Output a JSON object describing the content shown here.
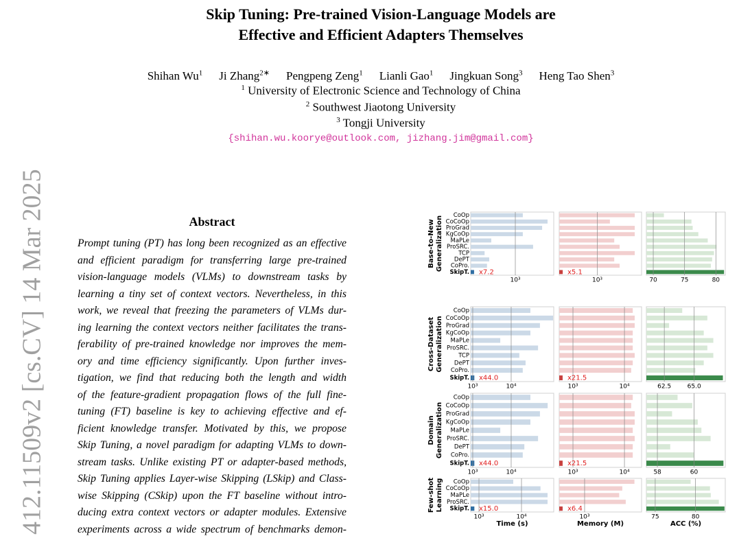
{
  "arxiv_stamp": "412.11509v2  [cs.CV]  14 Mar 2025",
  "header": {
    "title": [
      "Skip Tuning: Pre-trained Vision-Language Models are",
      "Effective and Efficient Adapters Themselves"
    ],
    "authors": [
      {
        "name": "Shihan Wu",
        "aff": "1"
      },
      {
        "name": "Ji Zhang",
        "aff": "2∗"
      },
      {
        "name": "Pengpeng Zeng",
        "aff": "1"
      },
      {
        "name": "Lianli Gao",
        "aff": "1"
      },
      {
        "name": "Jingkuan Song",
        "aff": "3"
      },
      {
        "name": "Heng Tao Shen",
        "aff": "3"
      }
    ],
    "affiliations": [
      {
        "num": "1",
        "name": "University of Electronic Science and Technology of China"
      },
      {
        "num": "2",
        "name": "Southwest Jiaotong University"
      },
      {
        "num": "3",
        "name": "Tongji University"
      }
    ],
    "emails": "{shihan.wu.koorye@outlook.com, jizhang.jim@gmail.com}"
  },
  "abstract": {
    "heading": "Abstract",
    "lines": [
      "Prompt tuning (PT) has long been recognized as an effective",
      "and efficient paradigm for transferring large pre-trained",
      "vision-language models (VLMs) to downstream tasks by",
      "learning a tiny set of context vectors. Nevertheless, in this",
      "work, we reveal that freezing the parameters of VLMs dur-",
      "ing learning the context vectors neither facilitates the trans-",
      "ferability of pre-trained knowledge nor improves the mem-",
      "ory and time efficiency significantly. Upon further inves-",
      "tigation, we find that reducing both the length and width",
      "of the feature-gradient propagation flows of the full fine-",
      "tuning (FT) baseline is key to achieving effective and ef-",
      "ficient knowledge transfer. Motivated by this, we propose",
      "Skip Tuning, a novel paradigm for adapting VLMs to down-",
      "stream tasks. Unlike existing PT or adapter-based methods,",
      "Skip Tuning applies Layer-wise Skipping (LSkip) and Class-",
      "wise Skipping (CSkip) upon the FT baseline without intro-",
      "ducing extra context vectors or adapter modules. Extensive",
      "experiments across a wide spectrum of benchmarks demon-"
    ]
  },
  "figure": {
    "columns": [
      {
        "title": "Time (s)",
        "color": "#cbd9e7",
        "highlight": "#2f6ea3",
        "log": true
      },
      {
        "title": "Memory (M)",
        "color": "#f2cfcf",
        "highlight": "#c8413f",
        "log": true
      },
      {
        "title": "ACC (%)",
        "color": "#d7e8d6",
        "highlight": "#3b8a4b",
        "log": false
      }
    ],
    "rows": [
      {
        "label": [
          "Base-to-New",
          "Generalization"
        ],
        "methods": [
          "CoOp",
          "CoCoOp",
          "ProGrad",
          "KgCoOp",
          "MaPLe",
          "ProSRC.",
          "TCP",
          "DePT",
          "CoPro.",
          "SkipT."
        ],
        "panels": [
          {
            "values": [
              1310,
              3200,
              2630,
              1310,
              420,
              1900,
              330,
              390,
              360,
              226
            ],
            "xlim": [
              200,
              4000
            ],
            "xticks": [
              {
                "value": 1000,
                "label": "10³"
              }
            ],
            "annotation": "x7.2"
          },
          {
            "values": [
              3900,
              1580,
              3900,
              3900,
              1850,
              2250,
              3900,
              1850,
              2250,
              284
            ],
            "xlim": [
              250,
              5000
            ],
            "xticks": [
              {
                "value": 1000,
                "label": "10³"
              }
            ],
            "annotation": "x5.1"
          },
          {
            "values": [
              71.7,
              76.1,
              76.3,
              77.2,
              78.7,
              80.1,
              79.7,
              79.4,
              79.2,
              81.3
            ],
            "xlim": [
              68.9,
              81.5
            ],
            "xticks": [
              70,
              75,
              80
            ]
          }
        ]
      },
      {
        "label": [
          "Cross-Dataset",
          "Generalization"
        ],
        "methods": [
          "CoOp",
          "CoCoOp",
          "ProGrad",
          "KgCoOp",
          "MaPLe",
          "ProSRC.",
          "TCP",
          "DePT",
          "CoPro.",
          "SkipT."
        ],
        "panels": [
          {
            "values": [
              31600,
              123000,
              56000,
              31600,
              5200,
              50000,
              16300,
              23700,
              20000,
              1100
            ],
            "xlim": [
              885,
              128000
            ],
            "xticks": [
              {
                "value": 1000,
                "label": "10³"
              },
              {
                "value": 10000,
                "label": "10⁴"
              }
            ],
            "annotation": "x44.0"
          },
          {
            "values": [
              14500,
              15800,
              15800,
              14500,
              14500,
              14500,
              15800,
              14500,
              13500,
              630
            ],
            "xlim": [
              541,
              21500
            ],
            "xticks": [
              {
                "value": 1000,
                "label": "10³"
              },
              {
                "value": 10000,
                "label": "10⁴"
              }
            ],
            "annotation": "x21.5"
          },
          {
            "values": [
              64.0,
              66.1,
              62.9,
              65.8,
              66.6,
              66.1,
              66.6,
              65.8,
              65.1,
              67.4
            ],
            "xlim": [
              61.0,
              67.6
            ],
            "xticks": [
              62.5,
              {
                "value": 65,
                "label": "65.0"
              }
            ]
          }
        ]
      },
      {
        "label": [
          "Domain",
          "Generalization"
        ],
        "methods": [
          "CoOp",
          "CoCoOp",
          "ProGrad",
          "KgCoOp",
          "MaPLe",
          "ProSRC.",
          "DePT",
          "CoPro.",
          "SkipT."
        ],
        "panels": [
          {
            "values": [
              31600,
              89000,
              56000,
              31600,
              5200,
              50000,
              22000,
              20000,
              1100
            ],
            "xlim": [
              885,
              128000
            ],
            "xticks": [
              {
                "value": 1000,
                "label": "10³"
              },
              {
                "value": 10000,
                "label": "10⁴"
              }
            ],
            "annotation": "x44.0"
          },
          {
            "values": [
              14500,
              13500,
              15800,
              15800,
              14500,
              15800,
              14500,
              14500,
              630
            ],
            "xlim": [
              541,
              21500
            ],
            "xticks": [
              {
                "value": 1000,
                "label": "10³"
              },
              {
                "value": 10000,
                "label": "10⁴"
              }
            ],
            "annotation": "x21.5"
          },
          {
            "values": [
              59.1,
              59.9,
              58.8,
              60.2,
              60.4,
              60.9,
              58.7,
              60.0,
              61.6
            ],
            "xlim": [
              57.4,
              61.7
            ],
            "xticks": [
              58,
              60
            ]
          }
        ]
      },
      {
        "label": [
          "Few-shot",
          "Learning"
        ],
        "methods": [
          "CoOp",
          "CoCoOp",
          "MaPLe",
          "ProSRC.",
          "SkipT."
        ],
        "panels": [
          {
            "values": [
              6400,
              28000,
              41000,
              41000,
              780
            ],
            "xlim": [
              640,
              57300
            ],
            "xticks": [
              {
                "value": 1000,
                "label": "10³"
              },
              {
                "value": 10000,
                "label": "10⁴"
              }
            ],
            "annotation": "x15.0"
          },
          {
            "values": [
              9300,
              5400,
              4700,
              6300,
              374
            ],
            "xlim": [
              321,
              12800
            ],
            "xticks": [
              {
                "value": 1000,
                "label": "10³"
              }
            ],
            "annotation": "x6.4"
          },
          {
            "values": [
              79.4,
              81.8,
              81.9,
              82.9,
              83.6
            ],
            "xlim": [
              73.9,
              83.7
            ],
            "xticks": [
              75,
              80
            ]
          }
        ]
      }
    ]
  }
}
